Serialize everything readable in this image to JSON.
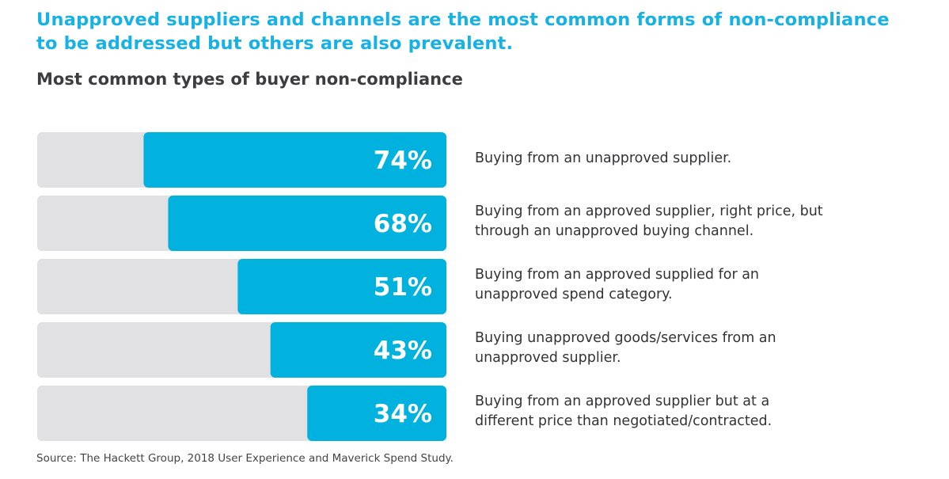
{
  "headline": "Unapproved suppliers and channels are the most common forms of non-compliance to be addressed but others are also prevalent.",
  "subtitle": "Most common types of buyer non-compliance",
  "source": "Source: The Hackett Group, 2018 User Experience and Maverick Spend Study.",
  "chart_data": {
    "type": "bar",
    "orientation": "horizontal",
    "title": "Most common types of buyer non-compliance",
    "xlim": [
      0,
      100
    ],
    "colors": {
      "bar": "#00b2dd",
      "track": "#e1e1e3"
    },
    "categories": [
      "Buying from an unapproved supplier.",
      "Buying from an approved supplier, right price, but through an unapproved buying channel.",
      "Buying from an approved supplied for an unapproved spend category.",
      "Buying unapproved goods/services from an unapproved supplier.",
      "Buying from an approved supplier but at a different price than negotiated/contracted."
    ],
    "values": [
      74,
      68,
      51,
      43,
      34
    ],
    "data_labels": [
      "74%",
      "68%",
      "51%",
      "43%",
      "34%"
    ]
  }
}
